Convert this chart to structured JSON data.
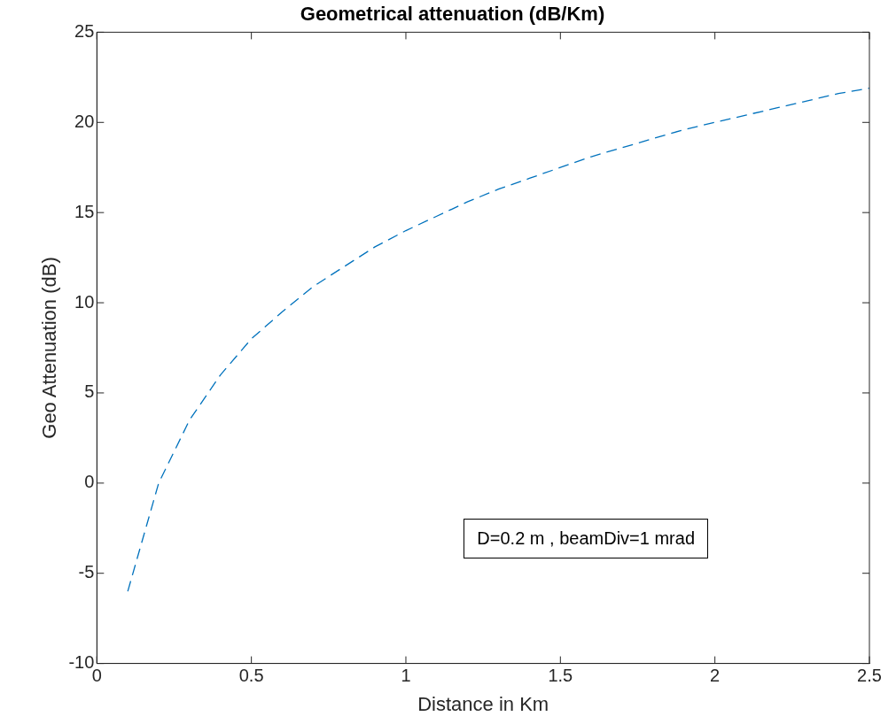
{
  "chart_data": {
    "type": "line",
    "title": "Geometrical attenuation (dB/Km)",
    "xlabel": "Distance in Km",
    "ylabel": "Geo Attenuation (dB)",
    "x": [
      0.1,
      0.2,
      0.3,
      0.4,
      0.5,
      0.6,
      0.7,
      0.8,
      0.9,
      1.0,
      1.1,
      1.2,
      1.3,
      1.4,
      1.5,
      1.6,
      1.7,
      1.8,
      1.9,
      2.0,
      2.1,
      2.2,
      2.3,
      2.4,
      2.5
    ],
    "series": [
      {
        "color": "#0072bd",
        "values": [
          -6.0,
          0.0,
          3.5,
          6.0,
          8.0,
          9.5,
          10.9,
          12.0,
          13.1,
          14.0,
          14.8,
          15.6,
          16.3,
          16.9,
          17.5,
          18.1,
          18.6,
          19.1,
          19.6,
          20.0,
          20.4,
          20.8,
          21.2,
          21.6,
          21.9
        ]
      }
    ],
    "xlim": [
      0,
      2.5
    ],
    "xticks": [
      0,
      0.5,
      1,
      1.5,
      2,
      2.5
    ],
    "ylim": [
      -10,
      25
    ],
    "yticks": [
      -10,
      -5,
      0,
      5,
      10,
      15,
      20,
      25
    ],
    "grid": false,
    "legend": false,
    "marker": "none",
    "line_style": "dashed",
    "annotations": [
      "D=0.2 m , beamDiv=1 mrad"
    ]
  }
}
